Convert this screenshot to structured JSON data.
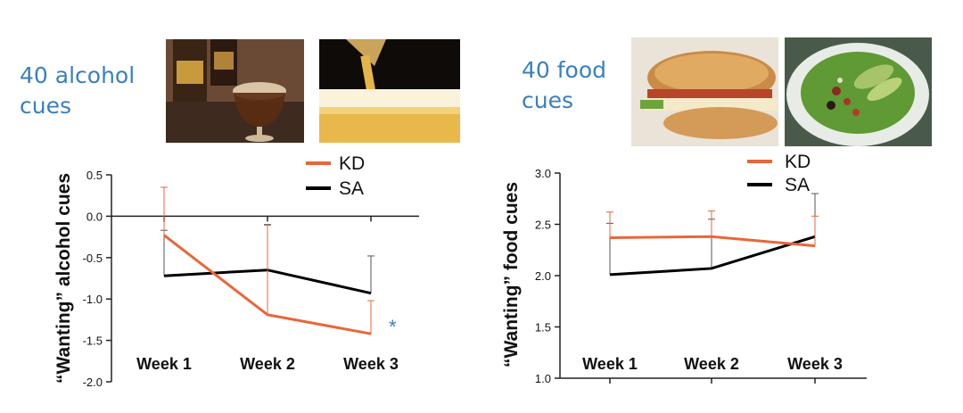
{
  "panels": [
    {
      "title_line1": "40 alcohol",
      "title_line2": "cues"
    },
    {
      "title_line1": "40 food",
      "title_line2": "cues"
    }
  ],
  "photos": {
    "alcohol_left": "whiskey-glass-photo",
    "alcohol_right": "beer-pour-photo",
    "food_left": "sandwich-photo",
    "food_right": "salad-photo"
  },
  "colors": {
    "KD": "#e8663a",
    "SA": "#000000",
    "annotation": "#3a7fbf"
  },
  "chart_data": [
    {
      "type": "line",
      "title": "",
      "xlabel": "",
      "ylabel": "“Wanting” alcohol cues",
      "categories": [
        "Week 1",
        "Week 2",
        "Week 3"
      ],
      "ylim": [
        -2.0,
        0.5
      ],
      "yticks": [
        0.5,
        0.0,
        -0.5,
        -1.0,
        -1.5,
        -2.0
      ],
      "ytick_labels": [
        "0.5",
        "0.0",
        "-0.5",
        "-1.0",
        "-1.5",
        "-2.0"
      ],
      "series": [
        {
          "name": "KD",
          "values": [
            -0.23,
            -1.19,
            -1.42
          ],
          "error": [
            0.58,
            1.08,
            0.4
          ],
          "error_dir": "up"
        },
        {
          "name": "SA",
          "values": [
            -0.72,
            -0.65,
            -0.93
          ],
          "error": [
            0.55,
            0.55,
            0.45
          ],
          "error_dir": "up"
        }
      ],
      "annotations": [
        {
          "text": "*",
          "category": "Week 3"
        }
      ],
      "legend": "top-right",
      "grid": false
    },
    {
      "type": "line",
      "title": "",
      "xlabel": "",
      "ylabel": "“Wanting” food cues",
      "categories": [
        "Week 1",
        "Week 2",
        "Week 3"
      ],
      "ylim": [
        1.0,
        3.0
      ],
      "yticks": [
        3.0,
        2.5,
        2.0,
        1.5,
        1.0
      ],
      "ytick_labels": [
        "3.0",
        "2.5",
        "2.0",
        "1.5",
        "1.0"
      ],
      "series": [
        {
          "name": "KD",
          "values": [
            2.37,
            2.38,
            2.29
          ],
          "error": [
            0.25,
            0.25,
            0.29
          ],
          "error_dir": "up"
        },
        {
          "name": "SA",
          "values": [
            2.01,
            2.07,
            2.38
          ],
          "error": [
            0.5,
            0.48,
            0.42
          ],
          "error_dir": "up"
        }
      ],
      "annotations": [],
      "legend": "top-right",
      "grid": false
    }
  ]
}
